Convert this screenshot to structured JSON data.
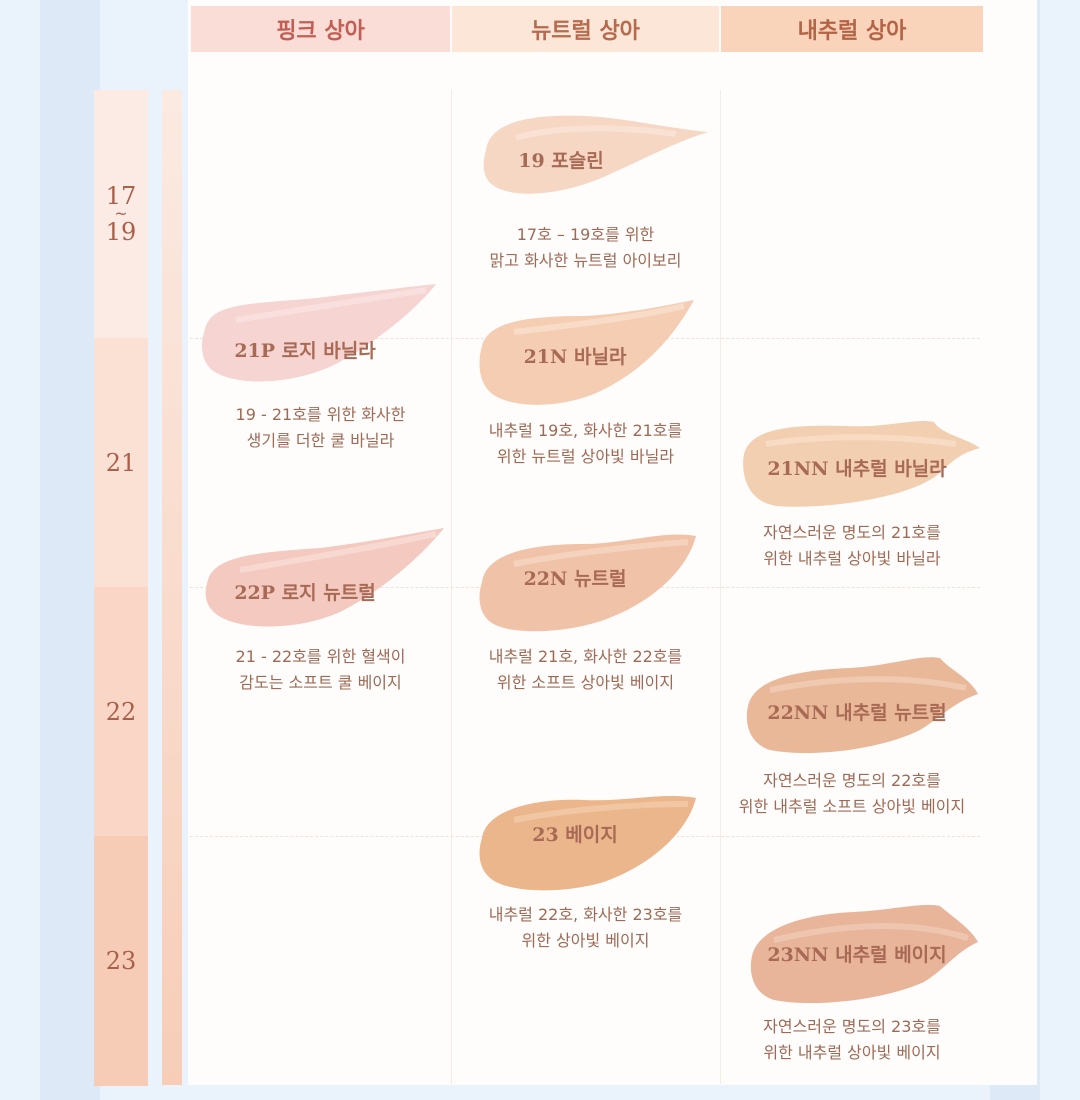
{
  "headers": {
    "pink": "핑크 상아",
    "neutral": "뉴트럴 상아",
    "warm": "내추럴 상아"
  },
  "ranges": {
    "r1_top": "17",
    "r1_tilde": "~",
    "r1_bottom": "19",
    "r2": "21",
    "r3": "22",
    "r4": "23"
  },
  "shades": {
    "s19": {
      "label": "19 포슬린",
      "desc1": "17호 – 19호를 위한",
      "desc2": "맑고 화사한 뉴트럴 아이보리"
    },
    "s21p": {
      "label": "21P 로지 바닐라",
      "desc1": "19 - 21호를 위한 화사한",
      "desc2": "생기를 더한 쿨 바닐라"
    },
    "s21n": {
      "label": "21N 바닐라",
      "desc1": "내추럴 19호, 화사한 21호를",
      "desc2": "위한 뉴트럴 상아빛 바닐라"
    },
    "s21nn": {
      "label": "21NN 내추럴 바닐라",
      "desc1": "자연스러운 명도의 21호를",
      "desc2": "위한 내추럴 상아빛 바닐라"
    },
    "s22p": {
      "label": "22P 로지 뉴트럴",
      "desc1": "21 - 22호를 위한 혈색이",
      "desc2": "감도는 소프트 쿨 베이지"
    },
    "s22n": {
      "label": "22N 뉴트럴",
      "desc1": "내추럴 21호, 화사한 22호를",
      "desc2": "위한 소프트 상아빛 베이지"
    },
    "s22nn": {
      "label": "22NN 내추럴 뉴트럴",
      "desc1": "자연스러운 명도의 22호를",
      "desc2": "위한 내추럴 소프트 상아빛 베이지"
    },
    "s23": {
      "label": "23 베이지",
      "desc1": "내추럴 22호, 화사한 23호를",
      "desc2": "위한 상아빛 베이지"
    },
    "s23nn": {
      "label": "23NN 내추럴 베이지",
      "desc1": "자연스러운 명도의 23호를",
      "desc2": "위한 내추럴 상아빛 베이지"
    }
  },
  "colors": {
    "header_pink": "#f9ddd6",
    "header_neutral": "#fbe6d8",
    "header_warm": "#f9d3ba",
    "swatch_19": "#f6d7c4",
    "swatch_21p": "#f5d4d1",
    "swatch_21n": "#f4cdb3",
    "swatch_21nn": "#f3cfb1",
    "swatch_22p": "#f3c9c0",
    "swatch_22n": "#f0c3a8",
    "swatch_22nn": "#e9b899",
    "swatch_23": "#ebb68b",
    "swatch_23nn": "#e8b59b"
  }
}
